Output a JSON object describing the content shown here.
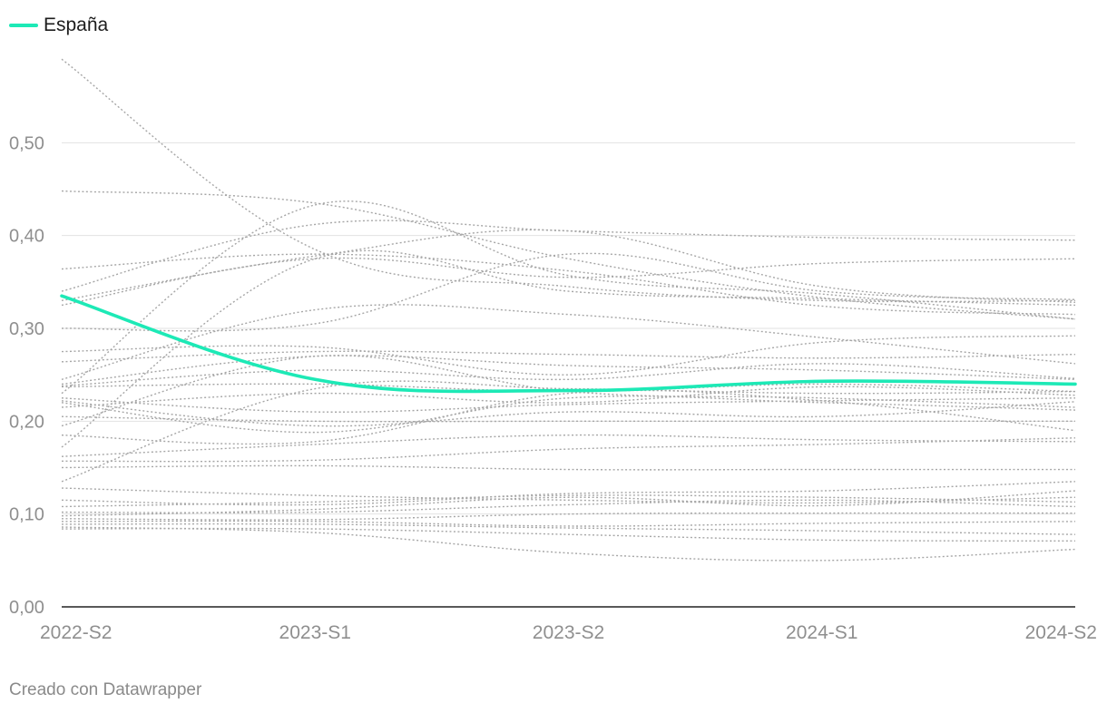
{
  "chart_data": {
    "type": "line",
    "categories": [
      "2022-S2",
      "2023-S1",
      "2023-S2",
      "2024-S1",
      "2024-S2"
    ],
    "ylim": [
      0,
      0.6
    ],
    "yticks": [
      0,
      0.1,
      0.2,
      0.3,
      0.4,
      0.5
    ],
    "ytick_labels": [
      "0,00",
      "0,10",
      "0,20",
      "0,30",
      "0,40",
      "0,50"
    ],
    "grid": true,
    "legend_position": "top-left",
    "highlight": {
      "name": "España",
      "color": "#1de9b6",
      "values": [
        0.335,
        0.245,
        0.233,
        0.243,
        0.24
      ]
    },
    "background_series": [
      [
        0.59,
        0.385,
        0.345,
        0.33,
        0.33
      ],
      [
        0.448,
        0.435,
        0.375,
        0.333,
        0.31
      ],
      [
        0.364,
        0.38,
        0.362,
        0.324,
        0.315
      ],
      [
        0.34,
        0.412,
        0.405,
        0.398,
        0.395
      ],
      [
        0.33,
        0.378,
        0.405,
        0.345,
        0.328
      ],
      [
        0.325,
        0.375,
        0.355,
        0.37,
        0.375
      ],
      [
        0.3,
        0.305,
        0.38,
        0.34,
        0.331
      ],
      [
        0.275,
        0.28,
        0.25,
        0.285,
        0.292
      ],
      [
        0.264,
        0.275,
        0.272,
        0.268,
        0.272
      ],
      [
        0.245,
        0.32,
        0.315,
        0.29,
        0.262
      ],
      [
        0.24,
        0.27,
        0.26,
        0.255,
        0.245
      ],
      [
        0.238,
        0.255,
        0.245,
        0.262,
        0.246
      ],
      [
        0.237,
        0.24,
        0.232,
        0.24,
        0.232
      ],
      [
        0.23,
        0.433,
        0.357,
        0.337,
        0.31
      ],
      [
        0.225,
        0.21,
        0.218,
        0.222,
        0.225
      ],
      [
        0.222,
        0.195,
        0.21,
        0.205,
        0.221
      ],
      [
        0.22,
        0.188,
        0.225,
        0.22,
        0.212
      ],
      [
        0.215,
        0.23,
        0.22,
        0.237,
        0.228
      ],
      [
        0.205,
        0.2,
        0.2,
        0.2,
        0.2
      ],
      [
        0.195,
        0.27,
        0.232,
        0.225,
        0.215
      ],
      [
        0.185,
        0.178,
        0.23,
        0.222,
        0.19
      ],
      [
        0.172,
        0.375,
        0.34,
        0.332,
        0.325
      ],
      [
        0.162,
        0.175,
        0.185,
        0.18,
        0.178
      ],
      [
        0.157,
        0.158,
        0.17,
        0.175,
        0.182
      ],
      [
        0.15,
        0.152,
        0.148,
        0.148,
        0.148
      ],
      [
        0.135,
        0.235,
        0.235,
        0.23,
        0.232
      ],
      [
        0.128,
        0.12,
        0.115,
        0.112,
        0.118
      ],
      [
        0.115,
        0.11,
        0.122,
        0.125,
        0.135
      ],
      [
        0.108,
        0.113,
        0.12,
        0.118,
        0.113
      ],
      [
        0.102,
        0.102,
        0.11,
        0.115,
        0.108
      ],
      [
        0.098,
        0.105,
        0.118,
        0.109,
        0.125
      ],
      [
        0.095,
        0.094,
        0.1,
        0.101,
        0.101
      ],
      [
        0.092,
        0.092,
        0.087,
        0.09,
        0.092
      ],
      [
        0.089,
        0.089,
        0.085,
        0.082,
        0.078
      ],
      [
        0.086,
        0.08,
        0.058,
        0.05,
        0.062
      ],
      [
        0.084,
        0.084,
        0.078,
        0.072,
        0.071
      ]
    ]
  },
  "footer": {
    "credit": "Creado con Datawrapper"
  }
}
